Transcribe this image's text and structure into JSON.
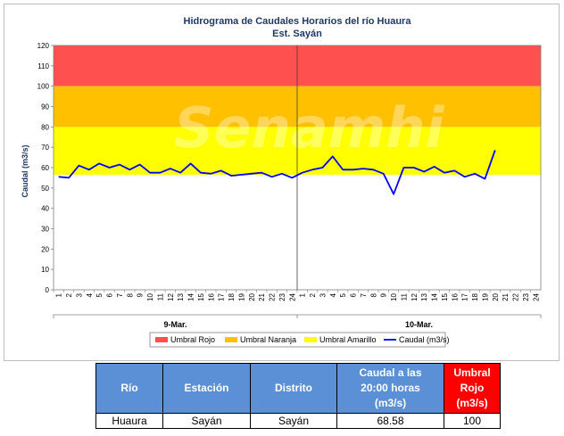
{
  "chart_data": {
    "type": "line",
    "title": "Hidrograma de Caudales Horarios del río Huaura",
    "subtitle": "Est. Sayán",
    "ylabel": "Caudal  (m3/s)",
    "ylim": [
      0,
      120
    ],
    "yticks": [
      0,
      10,
      20,
      30,
      40,
      50,
      60,
      70,
      80,
      90,
      100,
      110,
      120
    ],
    "hours_per_day": [
      "1",
      "2",
      "3",
      "4",
      "5",
      "6",
      "7",
      "8",
      "9",
      "10",
      "11",
      "12",
      "13",
      "14",
      "15",
      "16",
      "17",
      "18",
      "19",
      "20",
      "21",
      "22",
      "23",
      "24"
    ],
    "days": [
      "9-Mar.",
      "10-Mar."
    ],
    "watermark": "Senamhi",
    "bands": [
      {
        "name": "Umbral Rojo",
        "from": 100,
        "to": 120,
        "color": "#ff5050"
      },
      {
        "name": "Umbral Naranja",
        "from": 80,
        "to": 100,
        "color": "#ffc000"
      },
      {
        "name": "Umbral Amarillo",
        "from": 56.5,
        "to": 80,
        "color": "#ffff00"
      }
    ],
    "series": [
      {
        "name": "Caudal (m3/s)",
        "color": "#0000ff",
        "values": [
          55.5,
          55.0,
          61.0,
          59.0,
          62.0,
          60.0,
          61.5,
          59.0,
          61.5,
          57.5,
          57.5,
          59.5,
          57.5,
          62.0,
          57.5,
          57.0,
          58.5,
          56.0,
          56.5,
          57.0,
          57.5,
          55.5,
          57.0,
          55.0,
          57.5,
          59.0,
          60.0,
          65.5,
          59.0,
          59.0,
          59.5,
          59.0,
          57.0,
          47.0,
          60.0,
          60.0,
          58.0,
          60.5,
          57.5,
          58.5,
          55.5,
          57.0,
          54.5,
          68.58
        ]
      }
    ],
    "legend": [
      "Umbral Rojo",
      "Umbral Naranja",
      "Umbral Amarillo",
      "Caudal (m3/s)"
    ],
    "legend_position": "bottom"
  },
  "table": {
    "headers": {
      "rio": "Río",
      "estacion": "Estación",
      "distrito": "Distrito",
      "caudal_line1": "Caudal a las",
      "caudal_line2": "20:00 horas",
      "caudal_line3": "(m3/s)",
      "umbral_line1": "Umbral",
      "umbral_line2": "Rojo",
      "umbral_line3": "(m3/s)"
    },
    "row": {
      "rio": "Huaura",
      "estacion": "Sayán",
      "distrito": "Sayán",
      "caudal": "68.58",
      "umbral": "100"
    }
  }
}
